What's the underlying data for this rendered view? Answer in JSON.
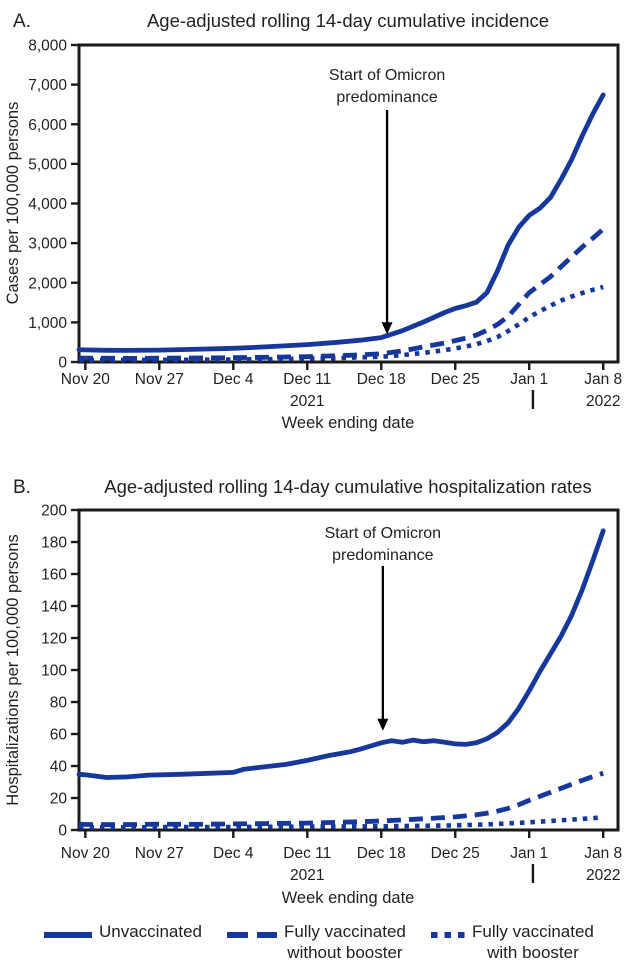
{
  "colors": {
    "line_blue": "#16379c",
    "axis": "#1a1a1a",
    "text": "#231f20",
    "background": "#ffffff"
  },
  "legend": {
    "items": [
      {
        "style": "solid",
        "lines": [
          "Unvaccinated"
        ]
      },
      {
        "style": "dashed",
        "lines": [
          "Fully vaccinated",
          "without booster"
        ]
      },
      {
        "style": "dotted",
        "lines": [
          "Fully vaccinated",
          "with booster"
        ]
      }
    ]
  },
  "chart_data": [
    {
      "type": "line",
      "panel_label": "A.",
      "title": "Age-adjusted rolling 14-day cumulative incidence",
      "xlabel": "Week ending date",
      "ylabel": "Cases per 100,000 persons",
      "x_unit": "days since Nov 20, 2021",
      "x_domain_days": [
        -0.6,
        50.4
      ],
      "ylim": [
        0,
        8000
      ],
      "grid": false,
      "x_ticks": [
        {
          "day": 0,
          "label": "Nov 20"
        },
        {
          "day": 7,
          "label": "Nov 27"
        },
        {
          "day": 14,
          "label": "Dec 4"
        },
        {
          "day": 21,
          "label": "Dec 11"
        },
        {
          "day": 28,
          "label": "Dec 18"
        },
        {
          "day": 35,
          "label": "Dec 25"
        },
        {
          "day": 42,
          "label": "Jan 1"
        },
        {
          "day": 49,
          "label": "Jan 8"
        }
      ],
      "year_labels": [
        {
          "day": 21,
          "label": "2021"
        },
        {
          "day": 49,
          "label": "2022"
        }
      ],
      "year_divider_day": 42.35,
      "y_ticks": [
        {
          "value": 0,
          "label": "0"
        },
        {
          "value": 1000,
          "label": "1,000"
        },
        {
          "value": 2000,
          "label": "2,000"
        },
        {
          "value": 3000,
          "label": "3,000"
        },
        {
          "value": 4000,
          "label": "4,000"
        },
        {
          "value": 5000,
          "label": "5,000"
        },
        {
          "value": 6000,
          "label": "6,000"
        },
        {
          "value": 7000,
          "label": "7,000"
        },
        {
          "value": 8000,
          "label": "8,000"
        }
      ],
      "annotation": {
        "text_lines": [
          "Start of Omicron",
          "predominance"
        ],
        "arrow_day": 28.55,
        "arrow_tip_value": 700
      },
      "series": [
        {
          "name": "Unvaccinated",
          "line_style": "solid",
          "points": [
            [
              -0.6,
              310
            ],
            [
              0,
              305
            ],
            [
              2,
              296
            ],
            [
              4,
              293
            ],
            [
              7,
              301
            ],
            [
              10,
              318
            ],
            [
              14,
              345
            ],
            [
              17,
              380
            ],
            [
              21,
              440
            ],
            [
              24,
              500
            ],
            [
              26,
              550
            ],
            [
              28,
              615
            ],
            [
              30,
              790
            ],
            [
              32,
              1010
            ],
            [
              34,
              1250
            ],
            [
              35,
              1350
            ],
            [
              36,
              1420
            ],
            [
              37,
              1510
            ],
            [
              38,
              1750
            ],
            [
              39,
              2300
            ],
            [
              40,
              2950
            ],
            [
              41,
              3400
            ],
            [
              42,
              3700
            ],
            [
              43,
              3880
            ],
            [
              44,
              4150
            ],
            [
              45,
              4600
            ],
            [
              46,
              5100
            ],
            [
              47,
              5700
            ],
            [
              48,
              6250
            ],
            [
              49,
              6740
            ]
          ]
        },
        {
          "name": "Fully vaccinated without booster",
          "line_style": "dashed",
          "points": [
            [
              -0.6,
              100
            ],
            [
              0,
              98
            ],
            [
              4,
              92
            ],
            [
              7,
              95
            ],
            [
              10,
              100
            ],
            [
              14,
              108
            ],
            [
              17,
              118
            ],
            [
              21,
              135
            ],
            [
              24,
              160
            ],
            [
              26,
              180
            ],
            [
              28,
              210
            ],
            [
              30,
              280
            ],
            [
              32,
              380
            ],
            [
              34,
              480
            ],
            [
              35,
              540
            ],
            [
              36,
              600
            ],
            [
              37,
              680
            ],
            [
              38,
              800
            ],
            [
              39,
              950
            ],
            [
              40,
              1150
            ],
            [
              41,
              1450
            ],
            [
              42,
              1750
            ],
            [
              43,
              1950
            ],
            [
              44,
              2150
            ],
            [
              45,
              2400
            ],
            [
              46,
              2650
            ],
            [
              47,
              2900
            ],
            [
              48,
              3120
            ],
            [
              49,
              3355
            ]
          ]
        },
        {
          "name": "Fully vaccinated with booster",
          "line_style": "dotted",
          "points": [
            [
              -0.6,
              55
            ],
            [
              0,
              54
            ],
            [
              4,
              50
            ],
            [
              7,
              52
            ],
            [
              10,
              55
            ],
            [
              14,
              62
            ],
            [
              17,
              70
            ],
            [
              21,
              85
            ],
            [
              24,
              100
            ],
            [
              26,
              115
            ],
            [
              28,
              135
            ],
            [
              30,
              175
            ],
            [
              32,
              230
            ],
            [
              34,
              300
            ],
            [
              35,
              340
            ],
            [
              36,
              390
            ],
            [
              37,
              450
            ],
            [
              38,
              530
            ],
            [
              39,
              630
            ],
            [
              40,
              780
            ],
            [
              41,
              950
            ],
            [
              42,
              1130
            ],
            [
              43,
              1280
            ],
            [
              44,
              1420
            ],
            [
              45,
              1550
            ],
            [
              46,
              1650
            ],
            [
              47,
              1740
            ],
            [
              48,
              1820
            ],
            [
              49,
              1895
            ]
          ]
        }
      ]
    },
    {
      "type": "line",
      "panel_label": "B.",
      "title": "Age-adjusted rolling 14-day cumulative hospitalization rates",
      "xlabel": "Week ending date",
      "ylabel": "Hospitalizations per 100,000 persons",
      "x_unit": "days since Nov 20, 2021",
      "x_domain_days": [
        -0.6,
        50.4
      ],
      "ylim": [
        0,
        200
      ],
      "grid": false,
      "x_ticks": [
        {
          "day": 0,
          "label": "Nov 20"
        },
        {
          "day": 7,
          "label": "Nov 27"
        },
        {
          "day": 14,
          "label": "Dec 4"
        },
        {
          "day": 21,
          "label": "Dec 11"
        },
        {
          "day": 28,
          "label": "Dec 18"
        },
        {
          "day": 35,
          "label": "Dec 25"
        },
        {
          "day": 42,
          "label": "Jan 1"
        },
        {
          "day": 49,
          "label": "Jan 8"
        }
      ],
      "year_labels": [
        {
          "day": 21,
          "label": "2021"
        },
        {
          "day": 49,
          "label": "2022"
        }
      ],
      "year_divider_day": 42.35,
      "y_ticks": [
        {
          "value": 0,
          "label": "0"
        },
        {
          "value": 20,
          "label": "20"
        },
        {
          "value": 40,
          "label": "40"
        },
        {
          "value": 60,
          "label": "60"
        },
        {
          "value": 80,
          "label": "80"
        },
        {
          "value": 100,
          "label": "100"
        },
        {
          "value": 120,
          "label": "120"
        },
        {
          "value": 140,
          "label": "140"
        },
        {
          "value": 160,
          "label": "160"
        },
        {
          "value": 180,
          "label": "180"
        },
        {
          "value": 200,
          "label": "200"
        }
      ],
      "annotation": {
        "text_lines": [
          "Start of Omicron",
          "predominance"
        ],
        "arrow_day": 28.15,
        "arrow_tip_value": 62
      },
      "series": [
        {
          "name": "Unvaccinated",
          "line_style": "solid",
          "points": [
            [
              -0.6,
              34.8
            ],
            [
              0,
              34.5
            ],
            [
              2,
              32.8
            ],
            [
              4,
              33.2
            ],
            [
              6,
              34.3
            ],
            [
              9,
              34.8
            ],
            [
              12,
              35.5
            ],
            [
              14,
              36
            ],
            [
              15,
              38
            ],
            [
              17,
              39.5
            ],
            [
              19,
              41
            ],
            [
              21,
              43.5
            ],
            [
              23,
              46.5
            ],
            [
              25,
              48.8
            ],
            [
              26,
              50.5
            ],
            [
              27,
              52.5
            ],
            [
              28,
              54.5
            ],
            [
              29,
              55.8
            ],
            [
              30,
              54.8
            ],
            [
              31,
              56.2
            ],
            [
              32,
              55.2
            ],
            [
              33,
              55.8
            ],
            [
              34,
              54.8
            ],
            [
              35,
              53.8
            ],
            [
              36,
              53.5
            ],
            [
              37,
              54.5
            ],
            [
              38,
              57
            ],
            [
              39,
              61
            ],
            [
              40,
              67
            ],
            [
              41,
              76
            ],
            [
              42,
              87
            ],
            [
              43,
              99
            ],
            [
              44,
              110
            ],
            [
              45,
              121
            ],
            [
              46,
              134
            ],
            [
              47,
              150
            ],
            [
              48,
              168
            ],
            [
              49,
              187
            ]
          ]
        },
        {
          "name": "Fully vaccinated without booster",
          "line_style": "dashed",
          "points": [
            [
              -0.6,
              3.6
            ],
            [
              0,
              3.5
            ],
            [
              3,
              3.3
            ],
            [
              7,
              3.6
            ],
            [
              10,
              3.5
            ],
            [
              14,
              3.8
            ],
            [
              17,
              4
            ],
            [
              21,
              4.3
            ],
            [
              24,
              4.8
            ],
            [
              26,
              5.2
            ],
            [
              28,
              5.6
            ],
            [
              30,
              6.3
            ],
            [
              32,
              7
            ],
            [
              34,
              7.8
            ],
            [
              35,
              8.2
            ],
            [
              37,
              9.5
            ],
            [
              38,
              10.5
            ],
            [
              39,
              11.8
            ],
            [
              40,
              13.5
            ],
            [
              41,
              15.8
            ],
            [
              42,
              18.5
            ],
            [
              43,
              21
            ],
            [
              44,
              23.5
            ],
            [
              45,
              26
            ],
            [
              46,
              28.5
            ],
            [
              47,
              31
            ],
            [
              48,
              33.3
            ],
            [
              49,
              35.5
            ]
          ]
        },
        {
          "name": "Fully vaccinated with booster",
          "line_style": "dotted",
          "points": [
            [
              -0.6,
              1.8
            ],
            [
              0,
              1.8
            ],
            [
              4,
              1.6
            ],
            [
              7,
              1.8
            ],
            [
              14,
              1.9
            ],
            [
              21,
              2.1
            ],
            [
              28,
              2.3
            ],
            [
              32,
              2.6
            ],
            [
              35,
              2.9
            ],
            [
              38,
              3.5
            ],
            [
              40,
              4.1
            ],
            [
              42,
              4.8
            ],
            [
              44,
              5.6
            ],
            [
              46,
              6.5
            ],
            [
              48,
              7.4
            ],
            [
              49,
              8
            ]
          ]
        }
      ]
    }
  ]
}
